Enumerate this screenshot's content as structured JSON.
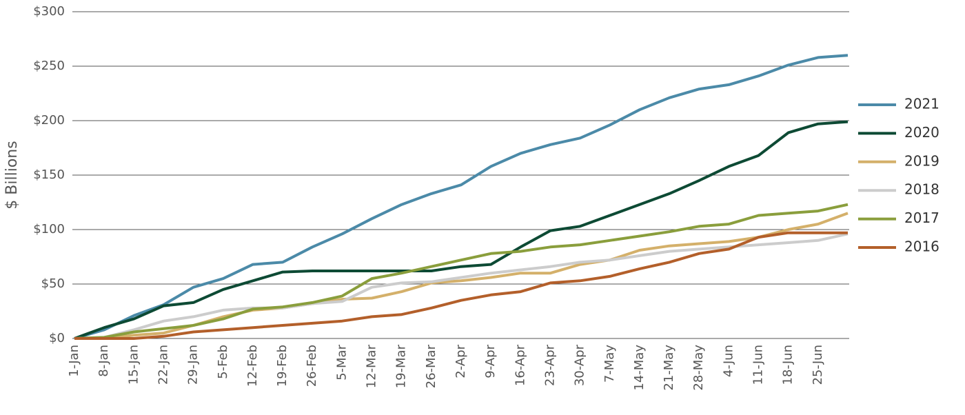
{
  "chart_data": {
    "type": "line",
    "ylabel": "$ Billions",
    "categories": [
      "1-Jan",
      "8-Jan",
      "15-Jan",
      "22-Jan",
      "29-Jan",
      "5-Feb",
      "12-Feb",
      "19-Feb",
      "26-Feb",
      "5-Mar",
      "12-Mar",
      "19-Mar",
      "26-Mar",
      "2-Apr",
      "9-Apr",
      "16-Apr",
      "23-Apr",
      "30-Apr",
      "7-May",
      "14-May",
      "21-May",
      "28-May",
      "4-Jun",
      "11-Jun",
      "18-Jun",
      "25-Jun",
      null
    ],
    "series": [
      {
        "name": "2021",
        "color": "#4b8aa8",
        "values": [
          0,
          8,
          21,
          31,
          47,
          55,
          68,
          70,
          84,
          96,
          110,
          123,
          133,
          141,
          158,
          170,
          178,
          184,
          196,
          210,
          221,
          229,
          233,
          241,
          251,
          258,
          260
        ]
      },
      {
        "name": "2020",
        "color": "#0d4a34",
        "values": [
          0,
          10,
          18,
          30,
          33,
          45,
          53,
          61,
          62,
          62,
          62,
          62,
          62,
          66,
          68,
          84,
          99,
          103,
          113,
          123,
          133,
          145,
          158,
          168,
          189,
          197,
          199
        ]
      },
      {
        "name": "2019",
        "color": "#d4b06a",
        "values": [
          0,
          0,
          3,
          5,
          12,
          20,
          26,
          28,
          32,
          36,
          37,
          43,
          51,
          53,
          56,
          60,
          60,
          68,
          72,
          81,
          85,
          87,
          89,
          93,
          100,
          105,
          115
        ]
      },
      {
        "name": "2018",
        "color": "#cccccc",
        "values": [
          0,
          1,
          8,
          16,
          20,
          26,
          28,
          28,
          32,
          34,
          47,
          51,
          52,
          56,
          60,
          63,
          66,
          70,
          72,
          76,
          80,
          82,
          84,
          86,
          88,
          90,
          96
        ]
      },
      {
        "name": "2017",
        "color": "#8a9e3c",
        "values": [
          0,
          1,
          6,
          9,
          12,
          18,
          27,
          29,
          33,
          39,
          55,
          60,
          66,
          72,
          78,
          80,
          84,
          86,
          90,
          94,
          98,
          103,
          105,
          113,
          115,
          117,
          123
        ]
      },
      {
        "name": "2016",
        "color": "#b35f2a",
        "values": [
          0,
          0,
          0,
          2,
          6,
          8,
          10,
          12,
          14,
          16,
          20,
          22,
          28,
          35,
          40,
          43,
          51,
          53,
          57,
          64,
          70,
          78,
          82,
          93,
          97,
          97,
          97
        ]
      }
    ],
    "ylim": [
      0,
      300
    ],
    "yticks": [
      {
        "value": 0,
        "label": "$0"
      },
      {
        "value": 50,
        "label": "$50"
      },
      {
        "value": 100,
        "label": "$100"
      },
      {
        "value": 150,
        "label": "$150"
      },
      {
        "value": 200,
        "label": "$200"
      },
      {
        "value": 250,
        "label": "$250"
      },
      {
        "value": 300,
        "label": "$300"
      }
    ],
    "grid": true,
    "legend": "right"
  }
}
